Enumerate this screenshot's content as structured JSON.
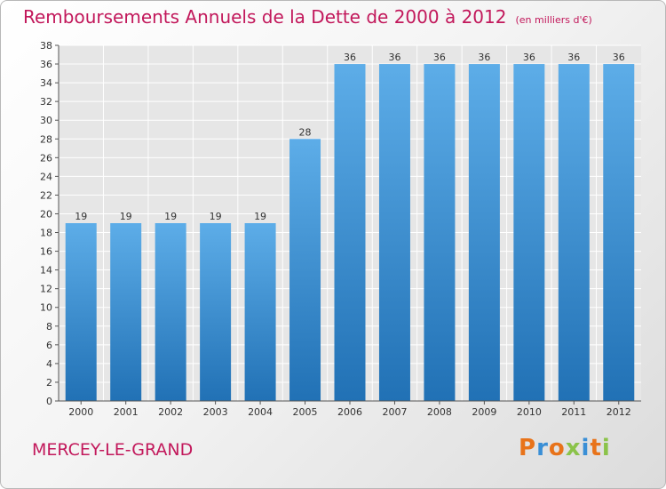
{
  "header": {
    "title": "Remboursements Annuels de la Dette de 2000 à 2012",
    "unit": "(en milliers d'€)"
  },
  "footer": {
    "place_name": "MERCEY-LE-GRAND",
    "logo_text": "Proxiti",
    "logo_colors": [
      "#e8731a",
      "#3a8fd6",
      "#e8731a",
      "#8bc34a",
      "#3a8fd6",
      "#e8731a",
      "#8bc34a"
    ]
  },
  "chart_data": {
    "type": "bar",
    "categories": [
      "2000",
      "2001",
      "2002",
      "2003",
      "2004",
      "2005",
      "2006",
      "2007",
      "2008",
      "2009",
      "2010",
      "2011",
      "2012"
    ],
    "values": [
      19,
      19,
      19,
      19,
      19,
      28,
      36,
      36,
      36,
      36,
      36,
      36,
      36
    ],
    "data_labels": [
      "19",
      "19",
      "19",
      "19",
      "19",
      "28",
      "36",
      "36",
      "36",
      "36",
      "36",
      "36",
      "36"
    ],
    "y_ticks": [
      "0",
      "2",
      "4",
      "6",
      "8",
      "10",
      "12",
      "14",
      "16",
      "18",
      "20",
      "22",
      "24",
      "26",
      "28",
      "30",
      "32",
      "34",
      "36",
      "38"
    ],
    "ylim": [
      0,
      38
    ],
    "grid": true,
    "bar_color_top": "#5dade8",
    "bar_color_bottom": "#2171b5",
    "plot_background": "#e6e6e6"
  }
}
